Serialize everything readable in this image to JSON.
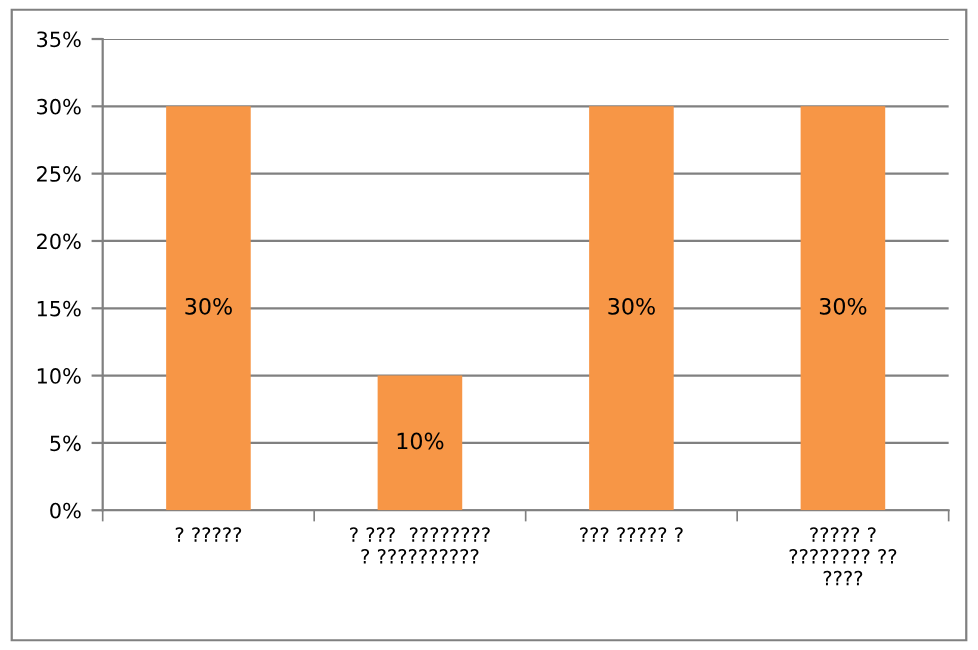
{
  "chart_data": {
    "type": "bar",
    "categories": [
      "? ?????",
      "? ???  ????????\n? ??????????",
      "??? ????? ?",
      "????? ?\n???????? ??\n????"
    ],
    "values": [
      30,
      10,
      30,
      30
    ],
    "color": "#f79646",
    "value_labels": [
      "30%",
      "10%",
      "30%",
      "30%"
    ],
    "ylim": [
      0,
      35
    ],
    "yticks": [
      {
        "value": 0,
        "label": "0%"
      },
      {
        "value": 5,
        "label": "5%"
      },
      {
        "value": 10,
        "label": "10%"
      },
      {
        "value": 15,
        "label": "15%"
      },
      {
        "value": 20,
        "label": "20%"
      },
      {
        "value": 25,
        "label": "25%"
      },
      {
        "value": 30,
        "label": "30%"
      },
      {
        "value": 35,
        "label": "35%"
      }
    ],
    "grid": "y",
    "legend": false
  }
}
